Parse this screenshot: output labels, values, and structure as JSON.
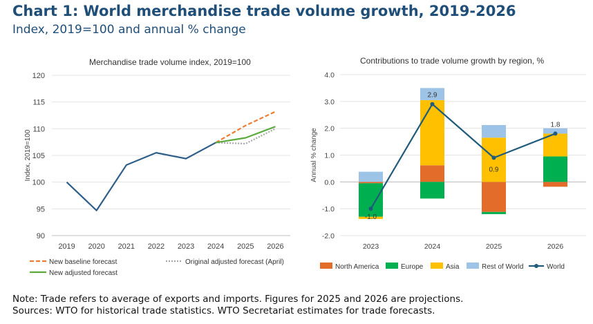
{
  "title": "Chart 1: World merchandise trade volume growth, 2019-2026",
  "subtitle": "Index, 2019=100 and annual % change",
  "notes": {
    "line1": "Note: Trade refers to average of exports and imports. Figures for 2025 and 2026 are projections.",
    "line2": "Sources: WTO for historical trade statistics. WTO Secretariat estimates for trade forecasts."
  },
  "chart_data": [
    {
      "type": "line",
      "title": "Merchandise trade volume index, 2019=100",
      "ylabel": "Index, 2019=100",
      "xlabel": "",
      "ylim": [
        90,
        120
      ],
      "yticks": [
        90,
        95,
        100,
        105,
        110,
        115,
        120
      ],
      "x": [
        "2019",
        "2020",
        "2021",
        "2022",
        "2023",
        "2024",
        "2025",
        "2026"
      ],
      "series": [
        {
          "name": "Historical",
          "color": "#2e5f8a",
          "style": "solid",
          "points": [
            [
              "2019",
              100.0
            ],
            [
              "2020",
              94.7
            ],
            [
              "2021",
              103.2
            ],
            [
              "2022",
              105.5
            ],
            [
              "2023",
              104.4
            ],
            [
              "2024",
              107.4
            ]
          ]
        },
        {
          "name": "New baseline forecast",
          "color": "#ed7d31",
          "style": "dashed",
          "points": [
            [
              "2024",
              107.4
            ],
            [
              "2025",
              110.6
            ],
            [
              "2026",
              113.2
            ]
          ]
        },
        {
          "name": "Original adjusted forecast (April)",
          "color": "#a5a5a5",
          "style": "dotted",
          "points": [
            [
              "2024",
              107.4
            ],
            [
              "2025",
              107.2
            ],
            [
              "2026",
              110.0
            ]
          ]
        },
        {
          "name": "New adjusted forecast",
          "color": "#5aaa3c",
          "style": "solid",
          "points": [
            [
              "2024",
              107.4
            ],
            [
              "2025",
              108.3
            ],
            [
              "2026",
              110.4
            ]
          ]
        }
      ],
      "legend": [
        {
          "name": "New baseline forecast",
          "color": "#ed7d31",
          "style": "dashed"
        },
        {
          "name": "Original adjusted forecast (April)",
          "color": "#a5a5a5",
          "style": "dotted"
        },
        {
          "name": "New adjusted forecast",
          "color": "#5aaa3c",
          "style": "solid"
        }
      ]
    },
    {
      "type": "bar",
      "stacked": true,
      "title": "Contributions to trade volume growth by region, %",
      "ylabel": "Annual % change",
      "xlabel": "",
      "ylim": [
        -2.0,
        4.0
      ],
      "yticks": [
        "-2.0",
        "-1.0",
        "0.0",
        "1.0",
        "2.0",
        "3.0",
        "4.0"
      ],
      "categories": [
        "2023",
        "2024",
        "2025",
        "2026"
      ],
      "series": [
        {
          "name": "North America",
          "color": "#e46c2a",
          "values": [
            -0.05,
            0.62,
            -1.12,
            -0.18
          ]
        },
        {
          "name": "Europe",
          "color": "#00b050",
          "values": [
            -1.25,
            -0.62,
            -0.08,
            0.95
          ]
        },
        {
          "name": "Asia",
          "color": "#ffc000",
          "values": [
            -0.08,
            2.43,
            1.65,
            0.85
          ]
        },
        {
          "name": "Rest of World",
          "color": "#9dc3e6",
          "values": [
            0.38,
            0.45,
            0.47,
            0.2
          ]
        }
      ],
      "line": {
        "name": "World",
        "color": "#1f5b7a",
        "values": [
          -1.0,
          2.9,
          0.9,
          1.8
        ],
        "labels": [
          "-1.0",
          "2.9",
          "0.9",
          "1.8"
        ]
      },
      "legend": [
        {
          "name": "North America",
          "color": "#e46c2a",
          "kind": "box"
        },
        {
          "name": "Europe",
          "color": "#00b050",
          "kind": "box"
        },
        {
          "name": "Asia",
          "color": "#ffc000",
          "kind": "box"
        },
        {
          "name": "Rest of World",
          "color": "#9dc3e6",
          "kind": "box"
        },
        {
          "name": "World",
          "color": "#1f5b7a",
          "kind": "line"
        }
      ]
    }
  ]
}
